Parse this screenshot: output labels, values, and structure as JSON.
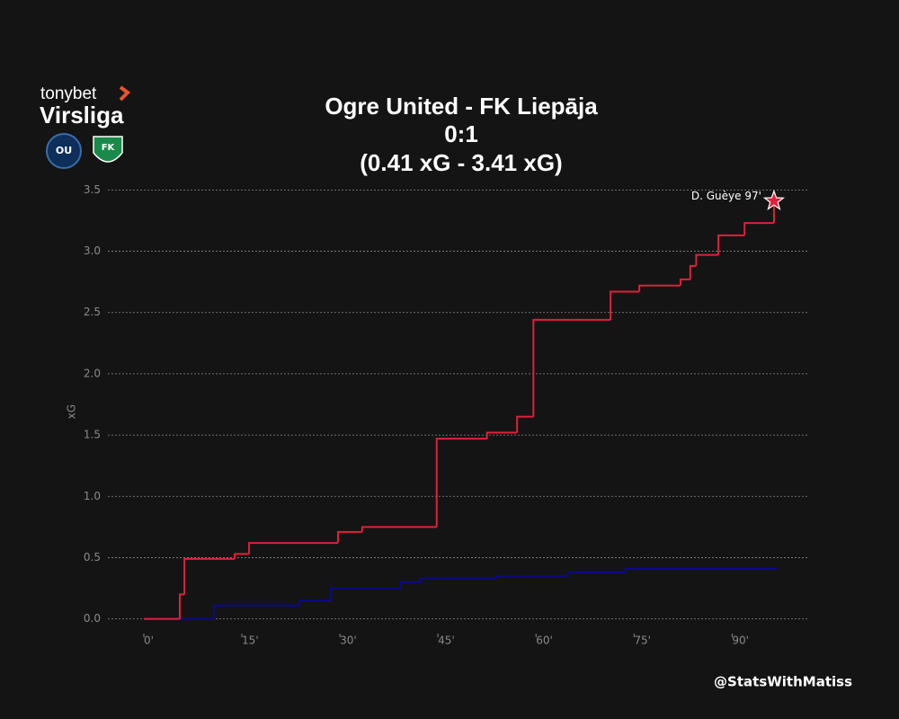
{
  "chart_data": {
    "type": "step",
    "title": [
      "Ogre United - FK Liepāja",
      "0:1",
      "(0.41 xG - 3.41 xG)"
    ],
    "logo": [
      "tonybet",
      "Virsliga"
    ],
    "badges": [
      "OU",
      "FK"
    ],
    "ylabel": "xG",
    "watermark": "@StatsWithMatiss",
    "xlim": [
      -5.5,
      101.5
    ],
    "ylim": [
      -0.12,
      3.62
    ],
    "xticks": [
      {
        "value": 0,
        "label": "0'"
      },
      {
        "value": 15,
        "label": "15'"
      },
      {
        "value": 30,
        "label": "30'"
      },
      {
        "value": 45,
        "label": "45'"
      },
      {
        "value": 60,
        "label": "60'"
      },
      {
        "value": 75,
        "label": "75'"
      },
      {
        "value": 90,
        "label": "90'"
      }
    ],
    "yticks": [
      {
        "value": 0,
        "label": "0.0"
      },
      0.5,
      {
        "value": 1,
        "label": "1.0"
      },
      1.5,
      {
        "value": 2,
        "label": "2.0"
      },
      2.5,
      {
        "value": 3,
        "label": "3.0"
      },
      3.5
    ],
    "grid": true,
    "series": [
      {
        "color": "#0a0a8c",
        "end": 97,
        "x": [
          0,
          10.7,
          23.8,
          28.6,
          39.3,
          42.4,
          53.9,
          64.9,
          73.7
        ],
        "values": [
          0,
          0.11,
          0.15,
          0.25,
          0.3,
          0.33,
          0.35,
          0.38,
          0.41
        ]
      },
      {
        "color": "#e0203a",
        "end": 96.4,
        "x": [
          0,
          5.5,
          6.2,
          13.9,
          16.1,
          29.7,
          33.4,
          44.8,
          52.5,
          57.1,
          59.6,
          71.4,
          75.8,
          82.1,
          83.6,
          84.5,
          87.9,
          91.9,
          96.4
        ],
        "values": [
          0,
          0.2,
          0.49,
          0.53,
          0.62,
          0.71,
          0.75,
          1.47,
          1.52,
          1.65,
          2.44,
          2.67,
          2.72,
          2.77,
          2.88,
          2.97,
          3.13,
          3.23,
          3.41
        ]
      }
    ],
    "goals": [
      {
        "x": 96.4,
        "y": 3.41,
        "label": "D. Guèye 97'",
        "color": "#e0203a"
      }
    ]
  }
}
